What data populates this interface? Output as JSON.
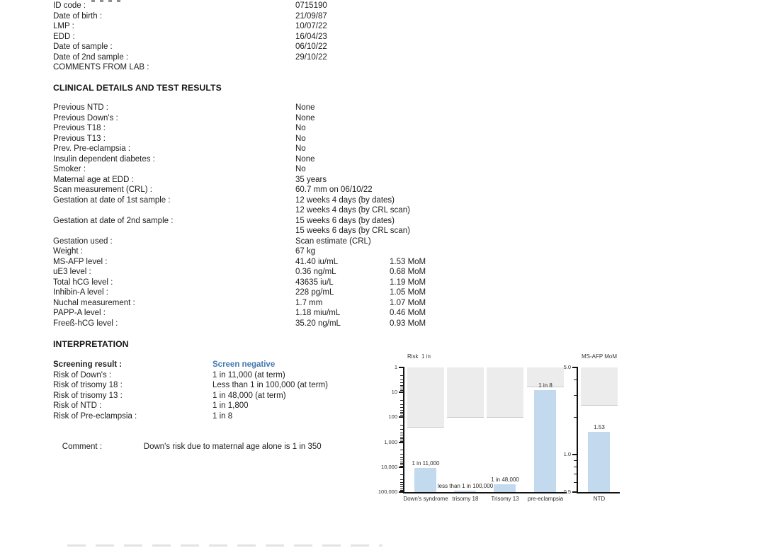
{
  "patient": {
    "rows": [
      {
        "label": "ID code :",
        "value": "0715190"
      },
      {
        "label": "Date of birth :",
        "value": "21/09/87"
      },
      {
        "label": "LMP :",
        "value": "10/07/22"
      },
      {
        "label": "EDD :",
        "value": "16/04/23"
      },
      {
        "label": "Date of sample :",
        "value": "06/10/22"
      },
      {
        "label": "Date of 2nd sample :",
        "value": "29/10/22"
      },
      {
        "label": "COMMENTS FROM LAB :",
        "value": ""
      }
    ]
  },
  "clinical": {
    "heading": "CLINICAL DETAILS AND TEST RESULTS",
    "rows": [
      {
        "label": "Previous NTD :",
        "value": "None"
      },
      {
        "label": "Previous Down's :",
        "value": "None"
      },
      {
        "label": "Previous T18 :",
        "value": "No"
      },
      {
        "label": "Previous T13 :",
        "value": "No"
      },
      {
        "label": "Prev. Pre-eclampsia :",
        "value": "No"
      },
      {
        "label": "Insulin dependent diabetes :",
        "value": "None"
      },
      {
        "label": "Smoker :",
        "value": "No"
      },
      {
        "label": "Maternal age at EDD :",
        "value": "35 years"
      },
      {
        "label": "Scan measurement (CRL) :",
        "value": "60.7 mm on 06/10/22"
      },
      {
        "label": "Gestation at date of 1st sample :",
        "value": "12 weeks 4 days (by dates)"
      },
      {
        "label": "",
        "value": "12 weeks 4 days (by CRL scan)"
      },
      {
        "label": "Gestation at date of 2nd sample :",
        "value": "15 weeks 6 days (by dates)"
      },
      {
        "label": "",
        "value": "15 weeks 6 days (by CRL scan)"
      },
      {
        "label": "Gestation used :",
        "value": "Scan estimate (CRL)"
      },
      {
        "label": "Weight :",
        "value": "67 kg"
      },
      {
        "label": "MS-AFP level :",
        "value": "41.40 iu/mL",
        "mom": "1.53 MoM"
      },
      {
        "label": "uE3 level :",
        "value": "0.36 ng/mL",
        "mom": "0.68 MoM"
      },
      {
        "label": "Total hCG level :",
        "value": "43635 iu/L",
        "mom": "1.19 MoM"
      },
      {
        "label": "Inhibin-A level :",
        "value": "228 pg/mL",
        "mom": "1.05 MoM"
      },
      {
        "label": "Nuchal measurement :",
        "value": "1.7 mm",
        "mom": "1.07 MoM"
      },
      {
        "label": "PAPP-A level :",
        "value": "1.18 miu/mL",
        "mom": "0.46 MoM"
      },
      {
        "label": "Freeß-hCG level :",
        "value": "35.20 ng/mL",
        "mom": "0.93 MoM"
      }
    ]
  },
  "interpretation": {
    "heading": "INTERPRETATION",
    "result_color": "#4679b2",
    "rows": [
      {
        "label": "Screening result :",
        "value": "Screen negative",
        "highlight": true
      },
      {
        "label": "Risk of Down's :",
        "value": "1 in 11,000 (at term)"
      },
      {
        "label": "Risk of trisomy 18 :",
        "value": "Less than 1 in 100,000 (at term)"
      },
      {
        "label": "Risk of trisomy 13 :",
        "value": "1 in 48,000 (at term)"
      },
      {
        "label": "Risk of NTD :",
        "value": "1 in 1,800"
      },
      {
        "label": "Risk of Pre-eclampsia :",
        "value": "1 in 8"
      }
    ],
    "comment_label": "Comment :",
    "comment": "Down's risk due to maternal age alone is 1 in 350"
  },
  "chart_data": [
    {
      "type": "bar",
      "title": "Risk  1 in",
      "yaxis": {
        "label": "Risk 1 in",
        "scale": "log_inverted",
        "min": 1,
        "max": 100000,
        "tick_values": [
          1,
          10,
          100,
          1000,
          10000,
          100000
        ],
        "tick_labels": [
          "1",
          "10",
          "100",
          "1,000",
          "10,000",
          "100,000"
        ]
      },
      "categories": [
        "Down's syndrome",
        "trisomy 18",
        "Trisomy 13",
        "pre-eclampsia"
      ],
      "values": [
        11000,
        100000,
        48000,
        8
      ],
      "value_is_upper_bound": [
        false,
        true,
        false,
        false
      ],
      "bar_labels": [
        "1 in 11,000",
        "less than 1 in 100,000",
        "1 in 48,000",
        "1 in 8"
      ],
      "high_risk_shaded_zone": {
        "from": 1,
        "to": [
          250,
          100,
          100,
          6
        ]
      },
      "bar_color": "#c3d9ee",
      "zone_color": "#ececec",
      "grid": false,
      "legend": false
    },
    {
      "type": "bar",
      "title": "MS-AFP MoM",
      "yaxis": {
        "label": "MS-AFP MoM",
        "scale": "log",
        "min": 0.5,
        "max": 5.0,
        "tick_values": [
          5.0,
          1.0,
          0.5
        ],
        "tick_labels": [
          "5.0",
          "1.0",
          "0.5"
        ]
      },
      "categories": [
        "NTD"
      ],
      "values": [
        1.53
      ],
      "value_is_upper_bound": [
        false
      ],
      "bar_labels": [
        "1.53"
      ],
      "high_risk_shaded_zone": {
        "from": 5.0,
        "to": [
          2.5
        ]
      },
      "bar_color": "#c3d9ee",
      "zone_color": "#ececec",
      "grid": false,
      "legend": false
    }
  ]
}
